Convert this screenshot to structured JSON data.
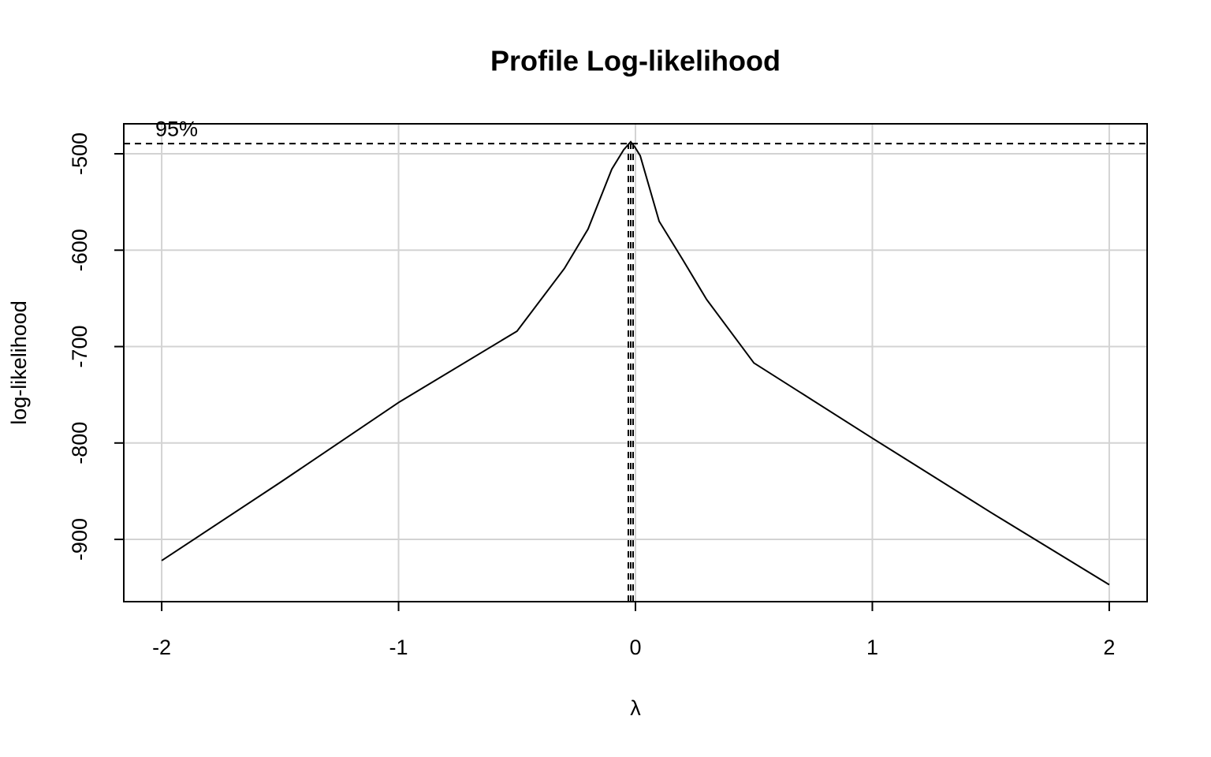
{
  "chart_data": {
    "type": "line",
    "title": "Profile Log-likelihood",
    "x_label": "λ",
    "y_label": "log-likelihood",
    "x": [
      -2,
      -1.5,
      -1,
      -0.5,
      -0.3,
      -0.2,
      -0.1,
      -0.05,
      -0.02,
      0,
      0.02,
      0.1,
      0.2,
      0.3,
      0.5,
      1,
      1.5,
      2
    ],
    "series": [
      {
        "color": "#000000",
        "values": [
          -922,
          -841,
          -758,
          -684,
          -619,
          -578,
          -516,
          -496,
          -487.6,
          -494,
          -502,
          -570,
          -610,
          -651,
          -717,
          -795,
          -872,
          -947
        ]
      }
    ],
    "xlim": [
      -2.16,
      2.16
    ],
    "ylim": [
      -964.6,
      -468.9
    ],
    "xticks": [
      -2,
      -1,
      0,
      1,
      2
    ],
    "yticks": [
      -900,
      -800,
      -700,
      -600,
      -500
    ],
    "grid": true,
    "reference_line": {
      "label": "95%",
      "value": -489.5
    },
    "vlines": [
      -0.03,
      -0.02,
      -0.01
    ]
  }
}
